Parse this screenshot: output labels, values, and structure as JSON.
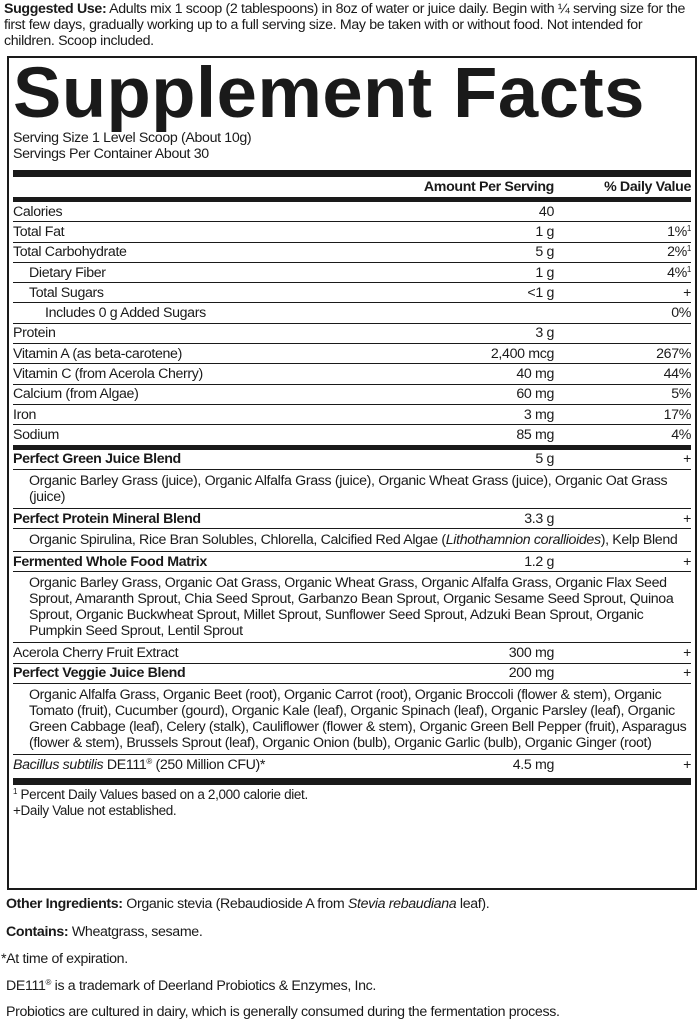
{
  "suggested_use": {
    "label": "Suggested Use:",
    "text": " Adults mix 1 scoop (2 tablespoons) in 8oz of water or juice daily. Begin with ¼ serving size for the first few days, gradually working up to a full serving size. May be taken with or without food. Not intended for children. Scoop included."
  },
  "title": "Supplement Facts",
  "serving_size": "Serving Size 1 Level Scoop (About 10g)",
  "servings_per_container": "Servings Per Container About 30",
  "header": {
    "amount": "Amount Per Serving",
    "dv": "% Daily Value"
  },
  "nutrients": [
    {
      "name": "Calories",
      "amount": "40",
      "dv": "",
      "sup": ""
    },
    {
      "name": "Total Fat",
      "amount": "1 g",
      "dv": "1%",
      "sup": "1"
    },
    {
      "name": "Total Carbohydrate",
      "amount": "5 g",
      "dv": "2%",
      "sup": "1"
    },
    {
      "name": "Dietary Fiber",
      "amount": "1 g",
      "dv": "4%",
      "sup": "1"
    },
    {
      "name": "Total Sugars",
      "amount": "<1 g",
      "dv": "+",
      "sup": ""
    },
    {
      "name": "Includes 0 g Added Sugars",
      "amount": "",
      "dv": "0%",
      "sup": ""
    },
    {
      "name": "Protein",
      "amount": "3 g",
      "dv": "",
      "sup": ""
    },
    {
      "name": "Vitamin A (as beta-carotene)",
      "amount": "2,400 mcg",
      "dv": "267%",
      "sup": ""
    },
    {
      "name": "Vitamin C (from Acerola Cherry)",
      "amount": "40 mg",
      "dv": "44%",
      "sup": ""
    },
    {
      "name": "Calcium (from Algae)",
      "amount": "60 mg",
      "dv": "5%",
      "sup": ""
    },
    {
      "name": "Iron",
      "amount": "3 mg",
      "dv": "17%",
      "sup": ""
    },
    {
      "name": "Sodium",
      "amount": "85 mg",
      "dv": "4%",
      "sup": ""
    }
  ],
  "blends": [
    {
      "name": "Perfect Green Juice Blend",
      "amount": "5 g",
      "dv": "+",
      "ingredients": "Organic Barley Grass (juice), Organic Alfalfa Grass (juice), Organic Wheat Grass (juice), Organic Oat Grass (juice)",
      "italic": "",
      "post": ""
    },
    {
      "name": "Perfect Protein Mineral Blend",
      "amount": "3.3 g",
      "dv": "+",
      "ingredients": "Organic Spirulina, Rice Bran Solubles, Chlorella, Calcified Red Algae (",
      "italic": "Lithothamnion corallioides",
      "post": "), Kelp Blend"
    },
    {
      "name": "Fermented Whole Food Matrix",
      "amount": "1.2 g",
      "dv": "+",
      "ingredients": "Organic Barley Grass, Organic Oat Grass, Organic Wheat Grass, Organic Alfalfa Grass, Organic Flax Seed Sprout, Amaranth Sprout, Chia Seed Sprout, Garbanzo Bean Sprout, Organic Sesame Seed Sprout, Quinoa Sprout, Organic Buckwheat Sprout, Millet Sprout, Sunflower Seed Sprout, Adzuki Bean Sprout, Organic Pumpkin Seed Sprout, Lentil Sprout",
      "italic": "",
      "post": ""
    }
  ],
  "acerola": {
    "name": "Acerola Cherry Fruit Extract",
    "amount": "300 mg",
    "dv": "+"
  },
  "veggie": {
    "name": "Perfect Veggie Juice Blend",
    "amount": "200 mg",
    "dv": "+",
    "ingredients": "Organic Alfalfa Grass, Organic Beet (root), Organic Carrot (root), Organic Broccoli (flower & stem), Organic Tomato (fruit), Cucumber (gourd), Organic Kale (leaf), Organic Spinach (leaf), Organic Parsley (leaf), Organic Green Cabbage (leaf), Celery (stalk), Cauliflower (flower & stem), Organic Green Bell Pepper (fruit), Asparagus (flower & stem), Brussels Sprout (leaf), Organic Onion (bulb), Organic Garlic (bulb), Organic Ginger (root)"
  },
  "bacillus": {
    "italic": "Bacillus subtilis",
    "name": " DE111",
    "reg": "®",
    "rest": " (250 Million CFU)*",
    "amount": "4.5 mg",
    "dv": "+"
  },
  "footnotes": {
    "sup": "1",
    "dv_note": " Percent Daily Values based on a 2,000 calorie diet.",
    "plus_note": "+Daily Value not established."
  },
  "other_ingredients": {
    "label": "Other Ingredients:",
    "pre": " Organic stevia (Rebaudioside A from ",
    "italic": "Stevia rebaudiana",
    "post": " leaf)."
  },
  "contains": {
    "label": "Contains:",
    "text": " Wheatgrass, sesame."
  },
  "expiration_note": "*At time of expiration.",
  "trademark": {
    "pre": "DE111",
    "reg": "®",
    "post": " is a trademark of Deerland Probiotics & Enzymes, Inc."
  },
  "dairy_note": "Probiotics are cultured in dairy, which is generally consumed during the fermentation process."
}
